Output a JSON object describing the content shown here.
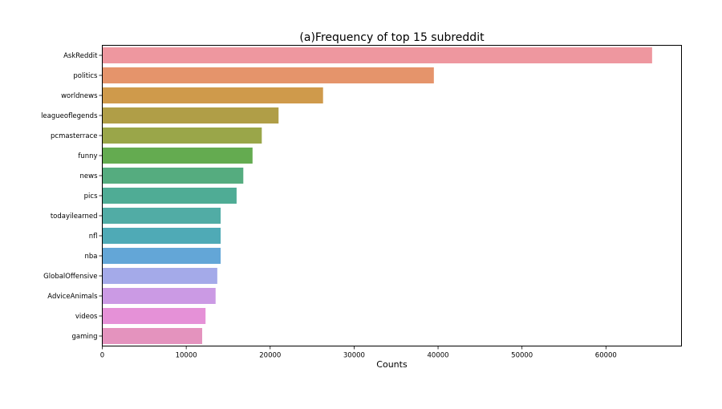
{
  "chart_data": {
    "type": "bar",
    "orientation": "horizontal",
    "title": "(a)Frequency of top 15 subreddit",
    "xlabel": "Counts",
    "ylabel": "",
    "xlim": [
      0,
      69000
    ],
    "xticks": [
      0,
      10000,
      20000,
      30000,
      40000,
      50000,
      60000
    ],
    "grid": false,
    "categories": [
      "AskReddit",
      "politics",
      "worldnews",
      "leagueoflegends",
      "pcmasterrace",
      "funny",
      "news",
      "pics",
      "todayilearned",
      "nfl",
      "nba",
      "GlobalOffensive",
      "AdviceAnimals",
      "videos",
      "gaming"
    ],
    "values": [
      65500,
      39500,
      26300,
      21000,
      19000,
      17900,
      16800,
      16000,
      14100,
      14100,
      14100,
      13700,
      13500,
      12300,
      11900
    ],
    "colors": [
      "#ee979f",
      "#e5946b",
      "#cf9a4b",
      "#b09e47",
      "#9aa649",
      "#64ab50",
      "#55ac7f",
      "#4fac95",
      "#51aca5",
      "#4faab6",
      "#63a6d7",
      "#a4aae9",
      "#cb9ae4",
      "#e591d7",
      "#e493be"
    ]
  }
}
